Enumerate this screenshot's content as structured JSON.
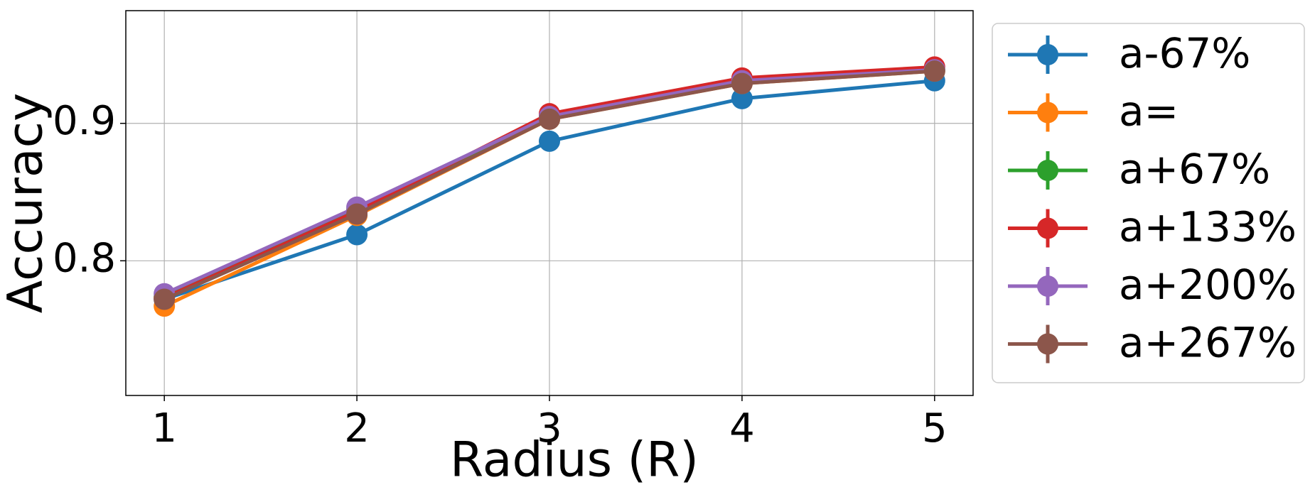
{
  "chart_data": {
    "type": "line",
    "xlabel": "Radius (R)",
    "ylabel": "Accuracy",
    "x": [
      1,
      2,
      3,
      4,
      5
    ],
    "xlim": [
      0.8,
      5.2
    ],
    "xticks": [
      1,
      2,
      3,
      4,
      5
    ],
    "ylim": [
      0.702,
      0.982
    ],
    "yticks": [
      0.8,
      0.9
    ],
    "grid": true,
    "legend": "outside-right",
    "series": [
      {
        "name": "a-67%",
        "color": "#1f77b4",
        "values": [
          0.772,
          0.819,
          0.887,
          0.918,
          0.931
        ]
      },
      {
        "name": "a=",
        "color": "#ff7f0e",
        "values": [
          0.767,
          0.833,
          0.903,
          0.929,
          0.938
        ]
      },
      {
        "name": "a+67%",
        "color": "#2ca02c",
        "values": [
          0.774,
          0.837,
          0.905,
          0.93,
          0.939
        ]
      },
      {
        "name": "a+133%",
        "color": "#d62728",
        "values": [
          0.773,
          0.836,
          0.907,
          0.933,
          0.941
        ]
      },
      {
        "name": "a+200%",
        "color": "#9467bd",
        "values": [
          0.776,
          0.839,
          0.905,
          0.931,
          0.939
        ]
      },
      {
        "name": "a+267%",
        "color": "#8c564b",
        "values": [
          0.772,
          0.834,
          0.903,
          0.929,
          0.938
        ]
      }
    ]
  }
}
